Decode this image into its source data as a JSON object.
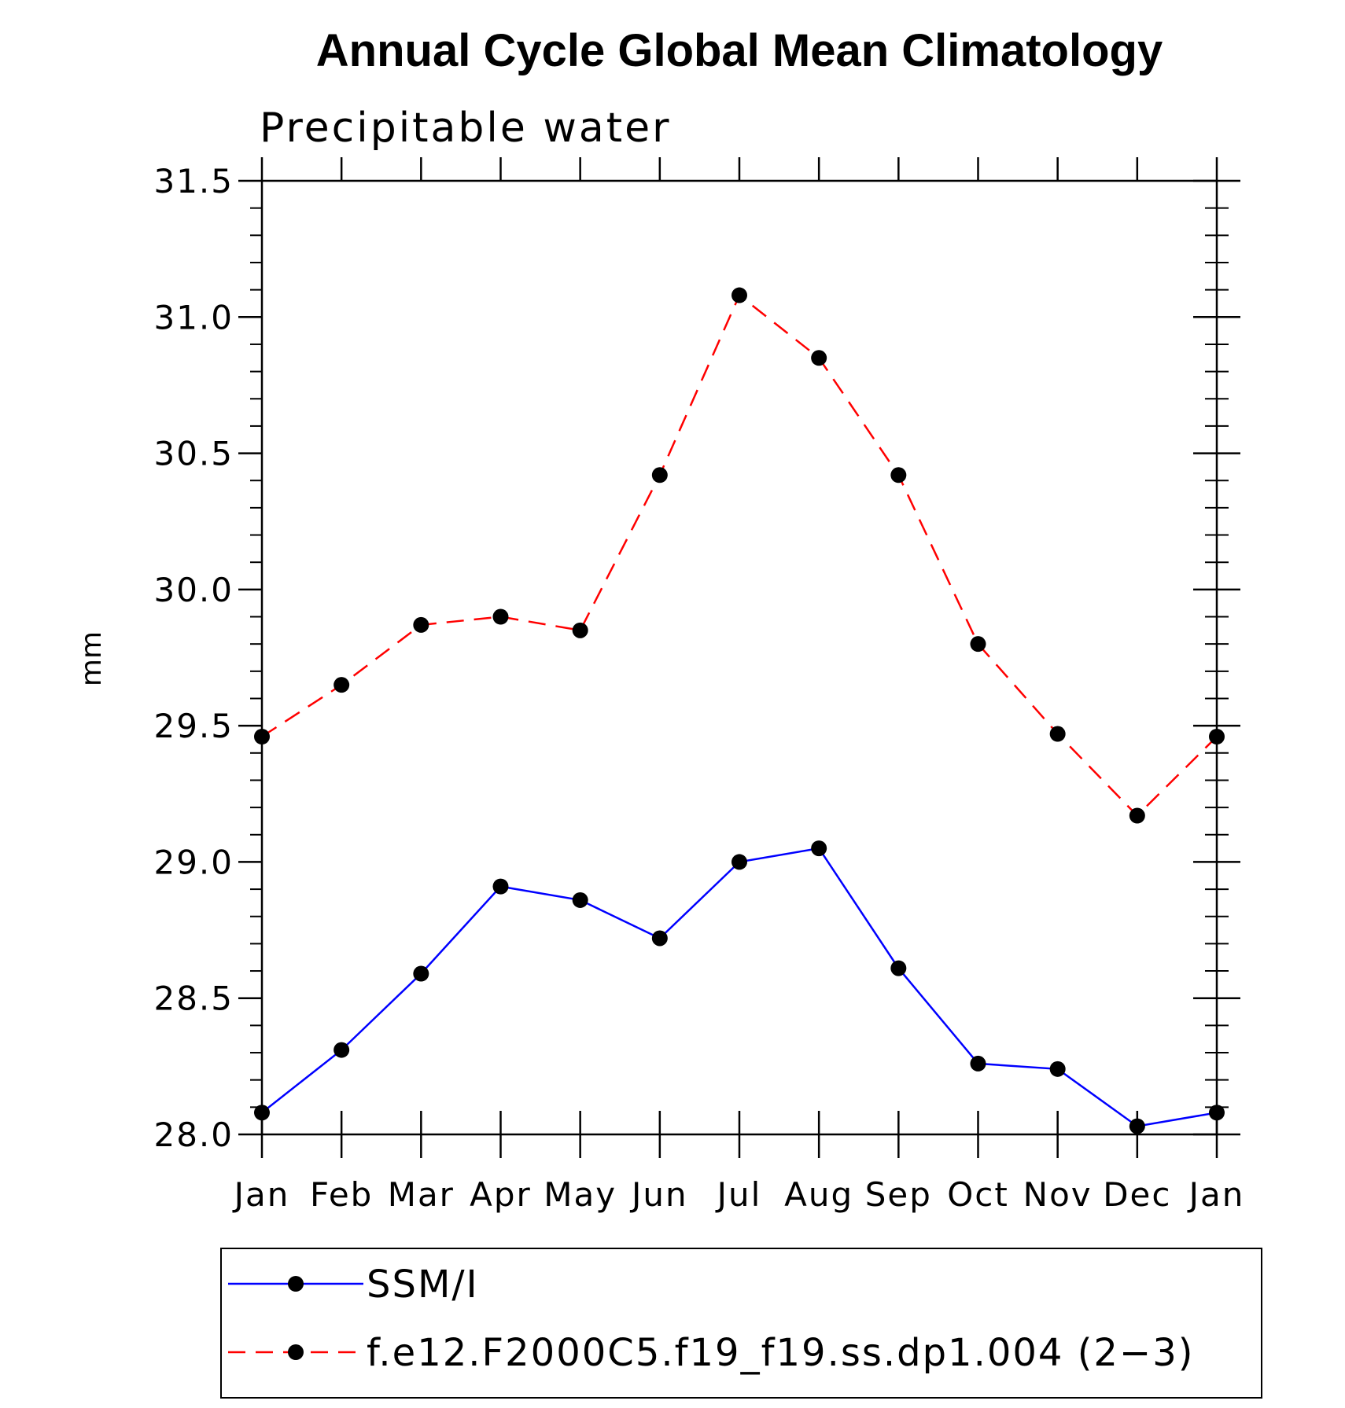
{
  "chart_data": {
    "type": "line",
    "title": "Annual Cycle Global Mean Climatology",
    "subtitle": "Precipitable water",
    "xlabel": "",
    "ylabel": "mm",
    "categories": [
      "Jan",
      "Feb",
      "Mar",
      "Apr",
      "May",
      "Jun",
      "Jul",
      "Aug",
      "Sep",
      "Oct",
      "Nov",
      "Dec",
      "Jan"
    ],
    "ylim": [
      28.0,
      31.5
    ],
    "yticks": [
      "28.0",
      "28.5",
      "29.0",
      "29.5",
      "30.0",
      "30.5",
      "31.0",
      "31.5"
    ],
    "series": [
      {
        "name": "SSM/I",
        "color": "#0000ff",
        "dash": "solid",
        "values": [
          28.08,
          28.31,
          28.59,
          28.91,
          28.86,
          28.72,
          29.0,
          29.05,
          28.61,
          28.26,
          28.24,
          28.03,
          28.08
        ]
      },
      {
        "name": "f.e12.F2000C5.f19_f19.ss.dp1.004 (2−3)",
        "color": "#ff0000",
        "dash": "dashed",
        "values": [
          29.46,
          29.65,
          29.87,
          29.9,
          29.85,
          30.42,
          31.08,
          30.85,
          30.42,
          29.8,
          29.47,
          29.17,
          29.46
        ]
      }
    ],
    "legend_position": "bottom"
  }
}
